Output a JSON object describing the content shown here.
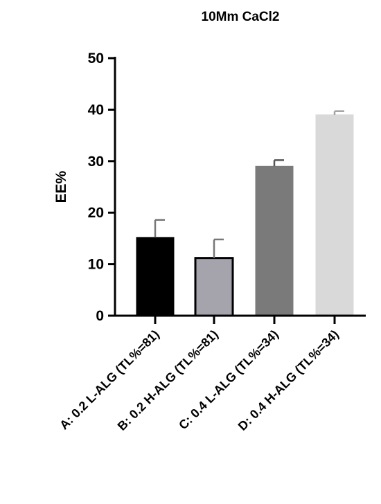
{
  "chart_data": {
    "type": "bar",
    "title": "10Mm CaCl2",
    "xlabel": "",
    "ylabel": "EE%",
    "ylim": [
      0,
      50
    ],
    "yticks": [
      0,
      10,
      20,
      30,
      40,
      50
    ],
    "grid": false,
    "legend": "none",
    "categories": [
      "A: 0.2 L-ALG (TL%=81)",
      "B: 0.2 H-ALG  (TL%=81)",
      "C: 0.4 L-ALG (TL%=34)",
      "D: 0.4 H-ALG (TL%=34)"
    ],
    "values": [
      15.2,
      11.2,
      29.0,
      39.0
    ],
    "errors": [
      3.4,
      3.6,
      1.2,
      0.7
    ],
    "colors": [
      "#000000",
      "#a5a3ab",
      "#7a7a7a",
      "#d9d9d9"
    ]
  }
}
